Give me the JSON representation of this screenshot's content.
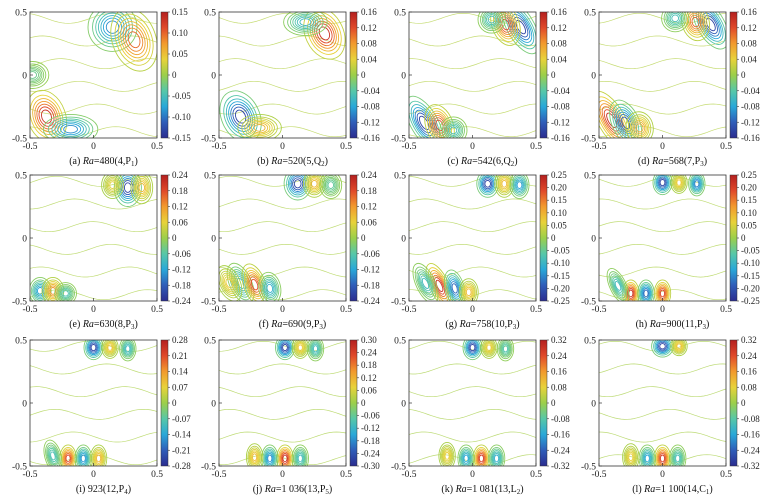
{
  "figure": {
    "axis_ticks": {
      "x": [
        "-0.5",
        "0",
        "0.5"
      ],
      "y": [
        "0.5",
        "0",
        "-0.5"
      ]
    }
  },
  "colors": {
    "colormap": [
      "#2b2c8f",
      "#2f5db8",
      "#29a8d8",
      "#57c7a8",
      "#9ccf4a",
      "#e8d23a",
      "#f29a2e",
      "#e0492a",
      "#b41f1f"
    ]
  },
  "chart_data": [
    {
      "type": "contour",
      "caption": {
        "letter": "(a) ",
        "italic": "Ra",
        "rest": "=480(4,P",
        "sub": "1",
        "close": ")"
      },
      "xlim": [
        -0.5,
        0.5
      ],
      "ylim": [
        -0.5,
        0.5
      ],
      "colorbar": {
        "min": -0.15,
        "max": 0.15,
        "ticks": [
          "0.15",
          "0.10",
          "0.05",
          "0",
          "-0.05",
          "-0.10",
          "-0.15"
        ]
      },
      "cells": [
        {
          "x": -0.37,
          "y": -0.33,
          "a": 0.15,
          "sx": 0.07,
          "sy": 0.1,
          "rot": -20
        },
        {
          "x": -0.18,
          "y": -0.43,
          "a": -0.1,
          "sx": 0.1,
          "sy": 0.055,
          "rot": 0
        },
        {
          "x": 0.15,
          "y": 0.38,
          "a": -0.1,
          "sx": 0.09,
          "sy": 0.09,
          "rot": 0
        },
        {
          "x": 0.32,
          "y": 0.28,
          "a": 0.11,
          "sx": 0.08,
          "sy": 0.12,
          "rot": -20
        },
        {
          "x": -0.48,
          "y": 0.0,
          "a": -0.03,
          "sx": 0.06,
          "sy": 0.05,
          "rot": 0
        }
      ]
    },
    {
      "type": "contour",
      "caption": {
        "letter": "(b) ",
        "italic": "Ra",
        "rest": "=520(5,Q",
        "sub": "2",
        "close": ")"
      },
      "xlim": [
        -0.5,
        0.5
      ],
      "ylim": [
        -0.5,
        0.5
      ],
      "colorbar": {
        "min": -0.16,
        "max": 0.16,
        "ticks": [
          "0.16",
          "0.12",
          "0.08",
          "0.04",
          "0",
          "-0.04",
          "-0.08",
          "-0.12",
          "-0.16"
        ]
      },
      "cells": [
        {
          "x": -0.33,
          "y": -0.33,
          "a": -0.16,
          "sx": 0.07,
          "sy": 0.1,
          "rot": -25
        },
        {
          "x": -0.18,
          "y": -0.42,
          "a": 0.07,
          "sx": 0.08,
          "sy": 0.05,
          "rot": 0
        },
        {
          "x": 0.33,
          "y": 0.33,
          "a": 0.16,
          "sx": 0.07,
          "sy": 0.1,
          "rot": -25
        },
        {
          "x": 0.18,
          "y": 0.42,
          "a": -0.07,
          "sx": 0.08,
          "sy": 0.05,
          "rot": 0
        }
      ]
    },
    {
      "type": "contour",
      "caption": {
        "letter": "(c) ",
        "italic": "Ra",
        "rest": "=542(6,Q",
        "sub": "2",
        "close": ")"
      },
      "xlim": [
        -0.5,
        0.5
      ],
      "ylim": [
        -0.5,
        0.5
      ],
      "colorbar": {
        "min": -0.16,
        "max": 0.16,
        "ticks": [
          "0.16",
          "0.12",
          "0.08",
          "0.04",
          "0",
          "-0.04",
          "-0.08",
          "-0.12",
          "-0.16"
        ]
      },
      "cells": [
        {
          "x": -0.38,
          "y": -0.38,
          "a": -0.16,
          "sx": 0.05,
          "sy": 0.11,
          "rot": -30
        },
        {
          "x": -0.26,
          "y": -0.4,
          "a": 0.14,
          "sx": 0.05,
          "sy": 0.08,
          "rot": -20
        },
        {
          "x": -0.15,
          "y": -0.44,
          "a": -0.06,
          "sx": 0.05,
          "sy": 0.05,
          "rot": 0
        },
        {
          "x": 0.38,
          "y": 0.38,
          "a": -0.16,
          "sx": 0.05,
          "sy": 0.11,
          "rot": -30
        },
        {
          "x": 0.26,
          "y": 0.4,
          "a": 0.14,
          "sx": 0.05,
          "sy": 0.08,
          "rot": -20
        },
        {
          "x": 0.15,
          "y": 0.44,
          "a": -0.06,
          "sx": 0.05,
          "sy": 0.05,
          "rot": 0
        }
      ]
    },
    {
      "type": "contour",
      "caption": {
        "letter": "(d) ",
        "italic": "Ra",
        "rest": "=568(7,P",
        "sub": "3",
        "close": ")"
      },
      "xlim": [
        -0.5,
        0.5
      ],
      "ylim": [
        -0.5,
        0.5
      ],
      "colorbar": {
        "min": -0.16,
        "max": 0.16,
        "ticks": [
          "0.16",
          "0.12",
          "0.08",
          "0.04",
          "0",
          "-0.04",
          "-0.08",
          "-0.12",
          "-0.16"
        ]
      },
      "cells": [
        {
          "x": -0.4,
          "y": -0.36,
          "a": 0.16,
          "sx": 0.05,
          "sy": 0.12,
          "rot": -30
        },
        {
          "x": -0.29,
          "y": -0.38,
          "a": -0.14,
          "sx": 0.05,
          "sy": 0.09,
          "rot": -25
        },
        {
          "x": -0.18,
          "y": -0.42,
          "a": 0.08,
          "sx": 0.05,
          "sy": 0.06,
          "rot": -10
        },
        {
          "x": 0.38,
          "y": 0.4,
          "a": -0.16,
          "sx": 0.05,
          "sy": 0.1,
          "rot": -30
        },
        {
          "x": 0.26,
          "y": 0.42,
          "a": 0.12,
          "sx": 0.05,
          "sy": 0.07,
          "rot": -15
        },
        {
          "x": 0.1,
          "y": 0.45,
          "a": -0.06,
          "sx": 0.05,
          "sy": 0.05,
          "rot": 0
        }
      ]
    },
    {
      "type": "contour",
      "caption": {
        "letter": "(e) ",
        "italic": "Ra",
        "rest": "=630(8,P",
        "sub": "3",
        "close": ")"
      },
      "xlim": [
        -0.5,
        0.5
      ],
      "ylim": [
        -0.5,
        0.5
      ],
      "colorbar": {
        "min": -0.24,
        "max": 0.24,
        "ticks": [
          "0.24",
          "0.18",
          "0.12",
          "0.06",
          "0",
          "-0.06",
          "-0.12",
          "-0.18",
          "-0.24"
        ]
      },
      "cells": [
        {
          "x": 0.27,
          "y": 0.4,
          "a": -0.24,
          "sx": 0.05,
          "sy": 0.07,
          "rot": 0
        },
        {
          "x": 0.38,
          "y": 0.4,
          "a": 0.1,
          "sx": 0.04,
          "sy": 0.06,
          "rot": 0
        },
        {
          "x": 0.15,
          "y": 0.42,
          "a": 0.06,
          "sx": 0.04,
          "sy": 0.05,
          "rot": 0
        },
        {
          "x": -0.42,
          "y": -0.42,
          "a": -0.14,
          "sx": 0.04,
          "sy": 0.05,
          "rot": 0
        },
        {
          "x": -0.32,
          "y": -0.42,
          "a": 0.14,
          "sx": 0.04,
          "sy": 0.05,
          "rot": 0
        },
        {
          "x": -0.22,
          "y": -0.44,
          "a": -0.08,
          "sx": 0.04,
          "sy": 0.04,
          "rot": 0
        }
      ]
    },
    {
      "type": "contour",
      "caption": {
        "letter": "(f) ",
        "italic": "Ra",
        "rest": "=690(9,P",
        "sub": "3",
        "close": ")"
      },
      "xlim": [
        -0.5,
        0.5
      ],
      "ylim": [
        -0.5,
        0.5
      ],
      "colorbar": {
        "min": -0.24,
        "max": 0.24,
        "ticks": [
          "0.24",
          "0.18",
          "0.12",
          "0.06",
          "0",
          "-0.06",
          "-0.12",
          "-0.18",
          "-0.24"
        ]
      },
      "cells": [
        {
          "x": 0.12,
          "y": 0.43,
          "a": -0.24,
          "sx": 0.05,
          "sy": 0.06,
          "rot": 0
        },
        {
          "x": 0.25,
          "y": 0.43,
          "a": 0.1,
          "sx": 0.04,
          "sy": 0.05,
          "rot": 0
        },
        {
          "x": 0.38,
          "y": 0.42,
          "a": -0.06,
          "sx": 0.04,
          "sy": 0.05,
          "rot": 0
        },
        {
          "x": -0.33,
          "y": -0.36,
          "a": -0.12,
          "sx": 0.04,
          "sy": 0.08,
          "rot": -25
        },
        {
          "x": -0.22,
          "y": -0.37,
          "a": 0.2,
          "sx": 0.04,
          "sy": 0.08,
          "rot": -20
        },
        {
          "x": -0.1,
          "y": -0.4,
          "a": -0.12,
          "sx": 0.04,
          "sy": 0.06,
          "rot": -10
        },
        {
          "x": -0.42,
          "y": -0.36,
          "a": 0.08,
          "sx": 0.04,
          "sy": 0.07,
          "rot": -25
        }
      ]
    },
    {
      "type": "contour",
      "caption": {
        "letter": "(g) ",
        "italic": "Ra",
        "rest": "=758(10,P",
        "sub": "3",
        "close": ")"
      },
      "xlim": [
        -0.5,
        0.5
      ],
      "ylim": [
        -0.5,
        0.5
      ],
      "colorbar": {
        "min": -0.25,
        "max": 0.25,
        "ticks": [
          "0.25",
          "0.20",
          "0.15",
          "0.10",
          "0.05",
          "0",
          "-0.05",
          "-0.10",
          "-0.15",
          "-0.20",
          "-0.25"
        ]
      },
      "cells": [
        {
          "x": 0.12,
          "y": 0.43,
          "a": -0.25,
          "sx": 0.04,
          "sy": 0.05,
          "rot": 0
        },
        {
          "x": 0.25,
          "y": 0.43,
          "a": 0.1,
          "sx": 0.035,
          "sy": 0.05,
          "rot": 0
        },
        {
          "x": 0.37,
          "y": 0.42,
          "a": -0.15,
          "sx": 0.035,
          "sy": 0.05,
          "rot": 0
        },
        {
          "x": -0.26,
          "y": -0.38,
          "a": 0.25,
          "sx": 0.035,
          "sy": 0.09,
          "rot": -25
        },
        {
          "x": -0.14,
          "y": -0.4,
          "a": -0.2,
          "sx": 0.035,
          "sy": 0.07,
          "rot": -15
        },
        {
          "x": -0.37,
          "y": -0.36,
          "a": -0.1,
          "sx": 0.035,
          "sy": 0.08,
          "rot": -25
        },
        {
          "x": -0.03,
          "y": -0.43,
          "a": 0.1,
          "sx": 0.035,
          "sy": 0.05,
          "rot": 0
        }
      ]
    },
    {
      "type": "contour",
      "caption": {
        "letter": "(h) ",
        "italic": "Ra",
        "rest": "=900(11,P",
        "sub": "3",
        "close": ")"
      },
      "xlim": [
        -0.5,
        0.5
      ],
      "ylim": [
        -0.5,
        0.5
      ],
      "colorbar": {
        "min": -0.25,
        "max": 0.25,
        "ticks": [
          "0.25",
          "0.20",
          "0.15",
          "0.10",
          "0.05",
          "0",
          "-0.05",
          "-0.10",
          "-0.15",
          "-0.20",
          "-0.25"
        ]
      },
      "cells": [
        {
          "x": 0.0,
          "y": 0.44,
          "a": -0.25,
          "sx": 0.035,
          "sy": 0.045,
          "rot": 0
        },
        {
          "x": 0.13,
          "y": 0.44,
          "a": 0.08,
          "sx": 0.03,
          "sy": 0.04,
          "rot": 0
        },
        {
          "x": 0.27,
          "y": 0.43,
          "a": -0.18,
          "sx": 0.03,
          "sy": 0.045,
          "rot": 0
        },
        {
          "x": -0.25,
          "y": -0.44,
          "a": 0.25,
          "sx": 0.03,
          "sy": 0.05,
          "rot": 0
        },
        {
          "x": -0.13,
          "y": -0.44,
          "a": -0.2,
          "sx": 0.03,
          "sy": 0.05,
          "rot": 0
        },
        {
          "x": 0.0,
          "y": -0.44,
          "a": 0.22,
          "sx": 0.03,
          "sy": 0.05,
          "rot": 0
        },
        {
          "x": -0.35,
          "y": -0.38,
          "a": -0.1,
          "sx": 0.03,
          "sy": 0.07,
          "rot": -25
        }
      ]
    },
    {
      "type": "contour",
      "caption": {
        "letter": "(i) ",
        "italic": "",
        "rest": "923(12,P",
        "sub": "4",
        "close": ")"
      },
      "xlim": [
        -0.5,
        0.5
      ],
      "ylim": [
        -0.5,
        0.5
      ],
      "colorbar": {
        "min": -0.28,
        "max": 0.28,
        "ticks": [
          "0.28",
          "0.21",
          "0.14",
          "0.07",
          "0",
          "-0.07",
          "-0.14",
          "-0.21",
          "-0.28"
        ]
      },
      "cells": [
        {
          "x": 0.0,
          "y": 0.44,
          "a": -0.28,
          "sx": 0.035,
          "sy": 0.045,
          "rot": 0
        },
        {
          "x": 0.13,
          "y": 0.44,
          "a": 0.1,
          "sx": 0.03,
          "sy": 0.04,
          "rot": 0
        },
        {
          "x": 0.27,
          "y": 0.43,
          "a": -0.12,
          "sx": 0.03,
          "sy": 0.045,
          "rot": 0
        },
        {
          "x": -0.2,
          "y": -0.44,
          "a": 0.24,
          "sx": 0.03,
          "sy": 0.05,
          "rot": 0
        },
        {
          "x": -0.08,
          "y": -0.44,
          "a": -0.18,
          "sx": 0.03,
          "sy": 0.05,
          "rot": 0
        },
        {
          "x": -0.32,
          "y": -0.42,
          "a": -0.1,
          "sx": 0.03,
          "sy": 0.06,
          "rot": -15
        },
        {
          "x": 0.04,
          "y": -0.44,
          "a": 0.12,
          "sx": 0.03,
          "sy": 0.05,
          "rot": 0
        }
      ]
    },
    {
      "type": "contour",
      "caption": {
        "letter": "(j) ",
        "italic": "Ra",
        "rest": "=1 036(13,P",
        "sub": "5",
        "close": ")"
      },
      "xlim": [
        -0.5,
        0.5
      ],
      "ylim": [
        -0.5,
        0.5
      ],
      "colorbar": {
        "min": -0.3,
        "max": 0.3,
        "ticks": [
          "0.30",
          "0.24",
          "0.18",
          "0.12",
          "0.06",
          "0",
          "-0.06",
          "-0.12",
          "-0.18",
          "-0.24",
          "-0.30"
        ]
      },
      "cells": [
        {
          "x": 0.02,
          "y": 0.44,
          "a": -0.3,
          "sx": 0.035,
          "sy": 0.045,
          "rot": 0
        },
        {
          "x": 0.14,
          "y": 0.44,
          "a": 0.1,
          "sx": 0.03,
          "sy": 0.04,
          "rot": 0
        },
        {
          "x": 0.26,
          "y": 0.43,
          "a": -0.12,
          "sx": 0.03,
          "sy": 0.045,
          "rot": 0
        },
        {
          "x": 0.02,
          "y": -0.44,
          "a": 0.3,
          "sx": 0.03,
          "sy": 0.05,
          "rot": 0
        },
        {
          "x": -0.1,
          "y": -0.44,
          "a": -0.2,
          "sx": 0.03,
          "sy": 0.05,
          "rot": 0
        },
        {
          "x": -0.22,
          "y": -0.43,
          "a": 0.12,
          "sx": 0.03,
          "sy": 0.05,
          "rot": 0
        },
        {
          "x": 0.14,
          "y": -0.44,
          "a": -0.12,
          "sx": 0.03,
          "sy": 0.05,
          "rot": 0
        }
      ]
    },
    {
      "type": "contour",
      "caption": {
        "letter": "(k) ",
        "italic": "Ra",
        "rest": "=1 081(13,L",
        "sub": "2",
        "close": ")"
      },
      "xlim": [
        -0.5,
        0.5
      ],
      "ylim": [
        -0.5,
        0.5
      ],
      "colorbar": {
        "min": -0.32,
        "max": 0.32,
        "ticks": [
          "0.32",
          "0.24",
          "0.16",
          "0.08",
          "0",
          "-0.08",
          "-0.16",
          "-0.24",
          "-0.32"
        ]
      },
      "cells": [
        {
          "x": 0.0,
          "y": 0.44,
          "a": -0.32,
          "sx": 0.035,
          "sy": 0.045,
          "rot": 0
        },
        {
          "x": 0.13,
          "y": 0.44,
          "a": 0.1,
          "sx": 0.03,
          "sy": 0.04,
          "rot": 0
        },
        {
          "x": 0.26,
          "y": 0.43,
          "a": -0.1,
          "sx": 0.03,
          "sy": 0.045,
          "rot": 0
        },
        {
          "x": 0.07,
          "y": -0.44,
          "a": 0.3,
          "sx": 0.03,
          "sy": 0.05,
          "rot": 0
        },
        {
          "x": -0.05,
          "y": -0.44,
          "a": -0.18,
          "sx": 0.03,
          "sy": 0.05,
          "rot": 0
        },
        {
          "x": 0.19,
          "y": -0.44,
          "a": -0.16,
          "sx": 0.03,
          "sy": 0.05,
          "rot": 0
        },
        {
          "x": -0.2,
          "y": -0.42,
          "a": 0.1,
          "sx": 0.03,
          "sy": 0.05,
          "rot": 0
        }
      ]
    },
    {
      "type": "contour",
      "caption": {
        "letter": "(l) ",
        "italic": "Ra",
        "rest": "=1 100(14,C",
        "sub": "1",
        "close": ")"
      },
      "xlim": [
        -0.5,
        0.5
      ],
      "ylim": [
        -0.5,
        0.5
      ],
      "colorbar": {
        "min": -0.32,
        "max": 0.32,
        "ticks": [
          "0.32",
          "0.24",
          "0.16",
          "0.08",
          "0",
          "-0.08",
          "-0.16",
          "-0.24",
          "-0.32"
        ]
      },
      "cells": [
        {
          "x": 0.0,
          "y": 0.45,
          "a": -0.32,
          "sx": 0.04,
          "sy": 0.04,
          "rot": 0
        },
        {
          "x": 0.13,
          "y": 0.45,
          "a": 0.12,
          "sx": 0.03,
          "sy": 0.035,
          "rot": 0
        },
        {
          "x": 0.0,
          "y": -0.44,
          "a": 0.3,
          "sx": 0.03,
          "sy": 0.05,
          "rot": 0
        },
        {
          "x": -0.12,
          "y": -0.44,
          "a": -0.18,
          "sx": 0.03,
          "sy": 0.05,
          "rot": 0
        },
        {
          "x": 0.12,
          "y": -0.44,
          "a": -0.12,
          "sx": 0.03,
          "sy": 0.05,
          "rot": 0
        },
        {
          "x": -0.25,
          "y": -0.43,
          "a": 0.1,
          "sx": 0.03,
          "sy": 0.05,
          "rot": 0
        }
      ]
    }
  ]
}
